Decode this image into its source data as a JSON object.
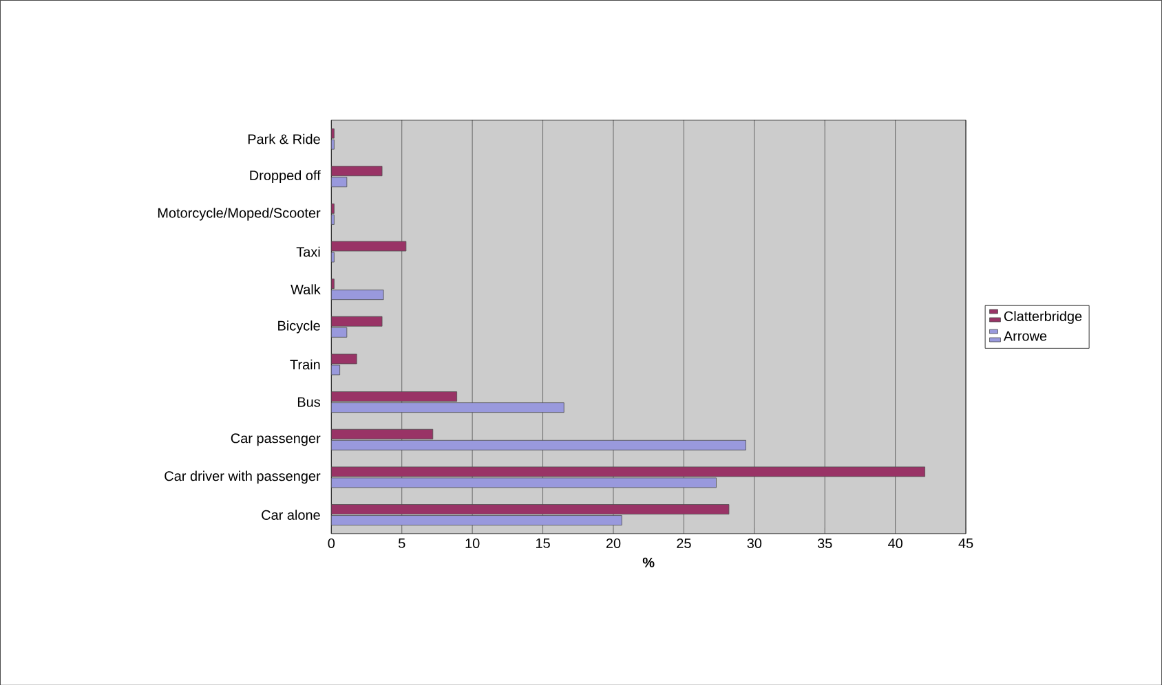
{
  "chart_data": {
    "type": "bar",
    "orientation": "horizontal",
    "xlabel": "%",
    "categories": [
      "Park & Ride",
      "Dropped off",
      "Motorcycle/Moped/Scooter",
      "Taxi",
      "Walk",
      "Bicycle",
      "Train",
      "Bus",
      "Car passenger",
      "Car driver with passenger",
      "Car alone"
    ],
    "series": [
      {
        "name": "Clatterbridge",
        "color": "#993366",
        "values": [
          0.2,
          3.6,
          0.2,
          5.3,
          0.2,
          3.6,
          1.8,
          8.9,
          7.2,
          42.1,
          28.2
        ]
      },
      {
        "name": "Arrowe",
        "color": "#9999dd",
        "values": [
          0.2,
          1.1,
          0.2,
          0.2,
          3.7,
          1.1,
          0.6,
          16.5,
          29.4,
          27.3,
          20.6
        ]
      }
    ],
    "xlim": [
      0,
      45
    ],
    "xticks": [
      0,
      5,
      10,
      15,
      20,
      25,
      30,
      35,
      40,
      45
    ],
    "grid": "x",
    "legend": "right"
  }
}
